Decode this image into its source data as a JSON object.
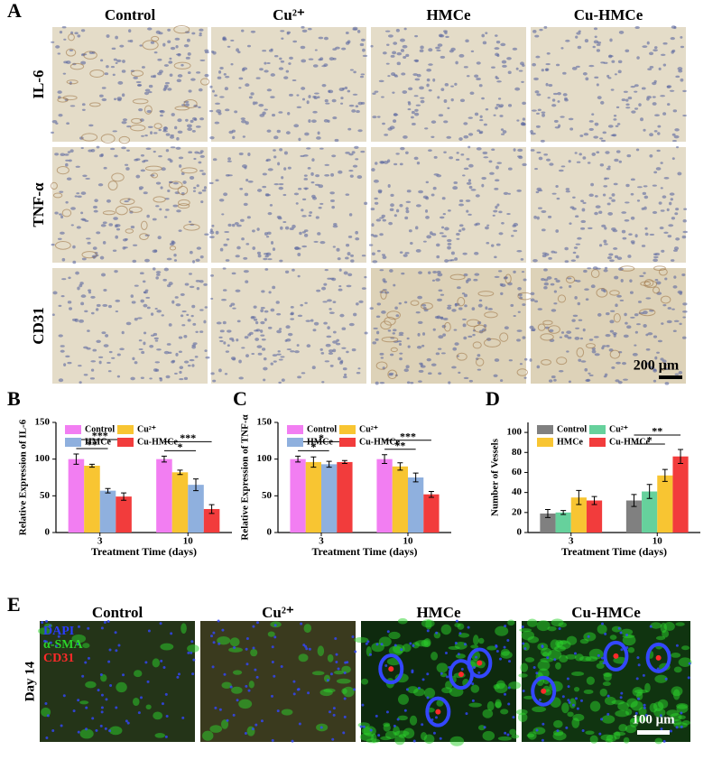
{
  "panels": {
    "a": {
      "letter": "A",
      "columns": [
        "Control",
        "Cu²⁺",
        "HMCe",
        "Cu-HMCe"
      ],
      "rows": [
        "IL-6",
        "TNF-α",
        "CD31"
      ],
      "scale": "200 μm"
    },
    "e": {
      "letter": "E",
      "columns": [
        "Control",
        "Cu²⁺",
        "HMCe",
        "Cu-HMCe"
      ],
      "row": "Day 14",
      "stains": [
        {
          "name": "DAPI",
          "color": "#2a3cff"
        },
        {
          "name": "α-SMA",
          "color": "#2bd42b"
        },
        {
          "name": "CD31",
          "color": "#ff2a2a"
        }
      ],
      "scale": "100 μm"
    }
  },
  "chart_data": [
    {
      "type": "bar",
      "letter": "B",
      "y_label": "Relative Expression of IL-6",
      "x_label": "Treatment Time (days)",
      "categories": [
        "3",
        "10"
      ],
      "ylim": [
        0,
        150
      ],
      "yticks": [
        0,
        50,
        100,
        150
      ],
      "legend": "upper left",
      "series": [
        {
          "name": "Control",
          "color": "#f27ef2",
          "values": [
            100,
            100
          ],
          "errors": [
            7,
            4
          ]
        },
        {
          "name": "Cu²⁺",
          "color": "#f8c532",
          "values": [
            91,
            82
          ],
          "errors": [
            2,
            3
          ]
        },
        {
          "name": "HMCe",
          "color": "#8fb0de",
          "values": [
            57,
            65
          ],
          "errors": [
            3,
            8
          ]
        },
        {
          "name": "Cu-HMCe",
          "color": "#f23c3c",
          "values": [
            49,
            32
          ],
          "errors": [
            5,
            6
          ]
        }
      ],
      "annotations": [
        {
          "text": "**",
          "category": "3",
          "from": "Control",
          "to": "HMCe"
        },
        {
          "text": "***",
          "category": "3",
          "from": "Control",
          "to": "Cu-HMCe"
        },
        {
          "text": "*",
          "category": "10",
          "from": "Control",
          "to": "HMCe"
        },
        {
          "text": "***",
          "category": "10",
          "from": "Control",
          "to": "Cu-HMCe"
        }
      ]
    },
    {
      "type": "bar",
      "letter": "C",
      "y_label": "Relative Expression of TNF-α",
      "x_label": "Treatment Time (days)",
      "categories": [
        "3",
        "10"
      ],
      "ylim": [
        0,
        150
      ],
      "yticks": [
        0,
        50,
        100,
        150
      ],
      "legend": "upper left",
      "series": [
        {
          "name": "Control",
          "color": "#f27ef2",
          "values": [
            100,
            100
          ],
          "errors": [
            4,
            6
          ]
        },
        {
          "name": "Cu²⁺",
          "color": "#f8c532",
          "values": [
            96,
            90
          ],
          "errors": [
            7,
            5
          ]
        },
        {
          "name": "HMCe",
          "color": "#8fb0de",
          "values": [
            93,
            75
          ],
          "errors": [
            4,
            6
          ]
        },
        {
          "name": "Cu-HMCe",
          "color": "#f23c3c",
          "values": [
            96,
            52
          ],
          "errors": [
            2,
            4
          ]
        }
      ],
      "annotations": [
        {
          "text": "*",
          "category": "3",
          "from": "Control",
          "to": "HMCe"
        },
        {
          "text": "*",
          "category": "3",
          "from": "Control",
          "to": "Cu-HMCe"
        },
        {
          "text": "**",
          "category": "10",
          "from": "Control",
          "to": "HMCe"
        },
        {
          "text": "***",
          "category": "10",
          "from": "Control",
          "to": "Cu-HMCe"
        }
      ]
    },
    {
      "type": "bar",
      "letter": "D",
      "y_label": "Number of Vessels",
      "x_label": "Treatment Time (days)",
      "categories": [
        "3",
        "10"
      ],
      "ylim": [
        0,
        110
      ],
      "yticks": [
        0,
        20,
        40,
        60,
        80,
        100
      ],
      "legend": "upper left",
      "series": [
        {
          "name": "Control",
          "color": "#808080",
          "values": [
            19,
            32
          ],
          "errors": [
            4,
            6
          ]
        },
        {
          "name": "Cu²⁺",
          "color": "#66d19c",
          "values": [
            20,
            41
          ],
          "errors": [
            2,
            7
          ]
        },
        {
          "name": "HMCe",
          "color": "#f8c532",
          "values": [
            35,
            57
          ],
          "errors": [
            7,
            6
          ]
        },
        {
          "name": "Cu-HMCe",
          "color": "#f23c3c",
          "values": [
            32,
            76
          ],
          "errors": [
            4,
            7
          ]
        }
      ],
      "annotations": [
        {
          "text": "*",
          "category": "10",
          "from": "Control",
          "to": "HMCe"
        },
        {
          "text": "**",
          "category": "10",
          "from": "Control",
          "to": "Cu-HMCe"
        }
      ]
    }
  ]
}
